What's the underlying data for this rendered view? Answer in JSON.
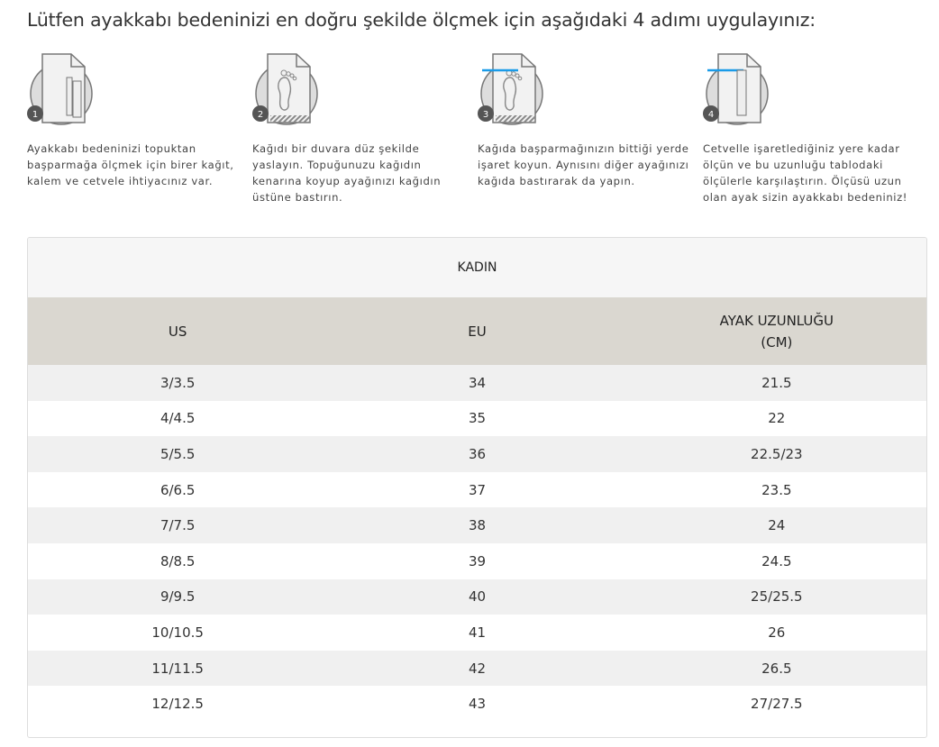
{
  "title": "Lütfen ayakkabı bedeninizi en doğru şekilde ölçmek için aşağıdaki 4 adımı uygulayınız:",
  "steps": [
    {
      "number": "1",
      "icon": "paper-pencil-ruler-icon",
      "text": "Ayakkabı bedeninizi topuktan başparmağa ölçmek için birer kağıt, kalem ve cetvele ihtiyacınız var."
    },
    {
      "number": "2",
      "icon": "foot-on-paper-icon",
      "text": "Kağıdı bir duvara düz şekilde yaslayın. Topuğunuzu kağıdın kenarına koyup ayağınızı kağıdın üstüne bastırın."
    },
    {
      "number": "3",
      "icon": "mark-toe-icon",
      "text": "Kağıda başparmağınızın bittiği yerde işaret koyun. Aynısını diğer ayağınızı kağıda bastırarak da yapın."
    },
    {
      "number": "4",
      "icon": "measure-ruler-icon",
      "text": "Cetvelle işaretlediğiniz yere kadar ölçün ve bu uzunluğu tablodaki ölçülerle karşılaştırın. Ölçüsü uzun olan ayak sizin ayakkabı bedeniniz!"
    }
  ],
  "accent_color": "#1a9be8",
  "table": {
    "caption": "KADIN",
    "headers": [
      "US",
      "EU",
      "AYAK UZUNLUĞU",
      "(CM)"
    ],
    "rows": [
      [
        "3/3.5",
        "34",
        "21.5"
      ],
      [
        "4/4.5",
        "35",
        "22"
      ],
      [
        "5/5.5",
        "36",
        "22.5/23"
      ],
      [
        "6/6.5",
        "37",
        "23.5"
      ],
      [
        "7/7.5",
        "38",
        "24"
      ],
      [
        "8/8.5",
        "39",
        "24.5"
      ],
      [
        "9/9.5",
        "40",
        "25/25.5"
      ],
      [
        "10/10.5",
        "41",
        "26"
      ],
      [
        "11/11.5",
        "42",
        "26.5"
      ],
      [
        "12/12.5",
        "43",
        "27/27.5"
      ]
    ]
  }
}
